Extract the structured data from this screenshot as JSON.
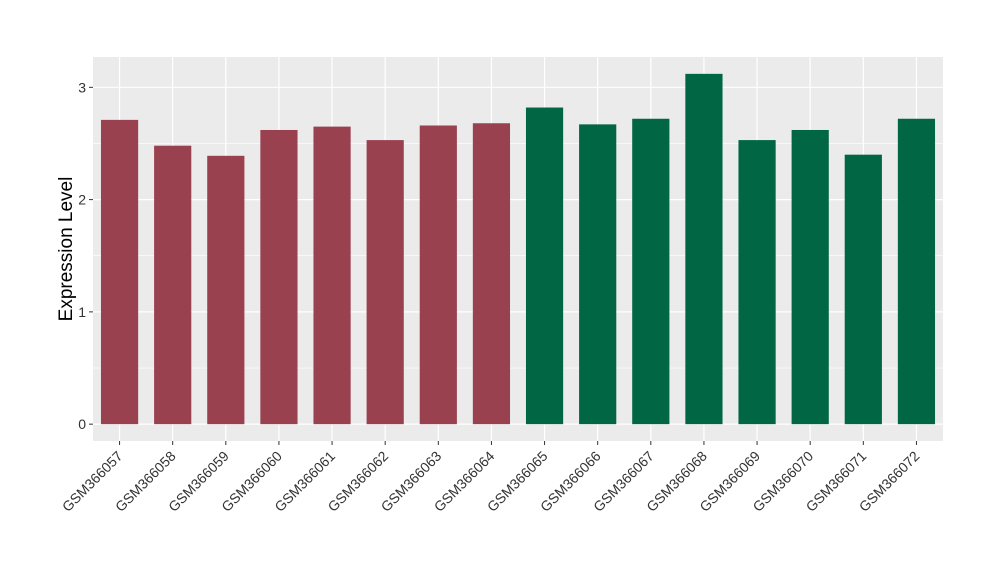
{
  "chart_data": {
    "type": "bar",
    "title": "",
    "xlabel": "",
    "ylabel": "Expression Level",
    "ylim": [
      -0.15,
      3.27
    ],
    "yticks": [
      0,
      1,
      2,
      3
    ],
    "grid": true,
    "categories": [
      "GSM366057",
      "GSM366058",
      "GSM366059",
      "GSM366060",
      "GSM366061",
      "GSM366062",
      "GSM366063",
      "GSM366064",
      "GSM366065",
      "GSM366066",
      "GSM366067",
      "GSM366068",
      "GSM366069",
      "GSM366070",
      "GSM366071",
      "GSM366072"
    ],
    "values": [
      2.71,
      2.48,
      2.39,
      2.62,
      2.65,
      2.53,
      2.66,
      2.68,
      2.82,
      2.67,
      2.72,
      3.12,
      2.53,
      2.62,
      2.4,
      2.72
    ],
    "colors": [
      "#9A4150",
      "#9A4150",
      "#9A4150",
      "#9A4150",
      "#9A4150",
      "#9A4150",
      "#9A4150",
      "#9A4150",
      "#006644",
      "#006644",
      "#006644",
      "#006644",
      "#006644",
      "#006644",
      "#006644",
      "#006644"
    ],
    "panel_color": "#EBEBEB",
    "grid_color": "#FFFFFF"
  }
}
